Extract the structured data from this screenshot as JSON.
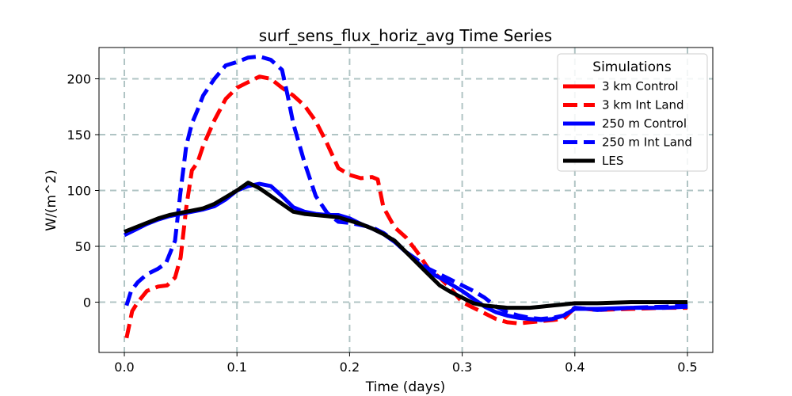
{
  "chart_data": {
    "type": "line",
    "title": "surf_sens_flux_horiz_avg Time Series",
    "xlabel": "Time (days)",
    "ylabel": "W/(m^2)",
    "xlim": [
      -0.0225,
      0.5225
    ],
    "ylim": [
      -45,
      228
    ],
    "xticks": [
      0.0,
      0.1,
      0.2,
      0.3,
      0.4,
      0.5
    ],
    "xtick_labels": [
      "0.0",
      "0.1",
      "0.2",
      "0.3",
      "0.4",
      "0.5"
    ],
    "yticks": [
      0,
      50,
      100,
      150,
      200
    ],
    "ytick_labels": [
      "0",
      "50",
      "100",
      "150",
      "200"
    ],
    "grid": true,
    "legend": {
      "title": "Simulations",
      "placement": "top-right"
    },
    "series": [
      {
        "name": "3 km Control",
        "color": "#ff0000",
        "dash": "solid",
        "x": [],
        "y": []
      },
      {
        "name": "3 km Int Land",
        "color": "#ff0000",
        "dash": "dashed",
        "x": [
          0.002,
          0.007,
          0.012,
          0.02,
          0.03,
          0.038,
          0.045,
          0.05,
          0.055,
          0.06,
          0.065,
          0.07,
          0.08,
          0.09,
          0.1,
          0.11,
          0.12,
          0.13,
          0.14,
          0.15,
          0.16,
          0.17,
          0.18,
          0.19,
          0.2,
          0.21,
          0.22,
          0.225,
          0.23,
          0.24,
          0.25,
          0.26,
          0.27,
          0.28,
          0.29,
          0.3,
          0.31,
          0.32,
          0.33,
          0.34,
          0.35,
          0.36,
          0.37,
          0.38,
          0.39,
          0.4,
          0.42,
          0.45,
          0.48,
          0.5
        ],
        "y": [
          -32,
          -8,
          0,
          10,
          14,
          15,
          22,
          40,
          85,
          118,
          125,
          140,
          163,
          182,
          192,
          197,
          202,
          200,
          192,
          185,
          176,
          162,
          142,
          120,
          114,
          111,
          112,
          110,
          85,
          67,
          58,
          45,
          30,
          22,
          12,
          0,
          -5,
          -10,
          -15,
          -18,
          -19,
          -18,
          -17,
          -16,
          -15,
          -5,
          -7,
          -6,
          -5,
          -5
        ]
      },
      {
        "name": "250 m Control",
        "color": "#0000ff",
        "dash": "solid",
        "x": [
          0.0,
          0.01,
          0.02,
          0.03,
          0.04,
          0.05,
          0.06,
          0.07,
          0.08,
          0.09,
          0.1,
          0.11,
          0.12,
          0.13,
          0.14,
          0.15,
          0.16,
          0.17,
          0.18,
          0.19,
          0.2,
          0.21,
          0.22,
          0.23,
          0.24,
          0.25,
          0.26,
          0.27,
          0.28,
          0.29,
          0.3,
          0.31,
          0.32,
          0.33,
          0.34,
          0.35,
          0.36,
          0.37,
          0.38,
          0.39,
          0.4,
          0.42,
          0.45,
          0.48,
          0.5
        ],
        "y": [
          60,
          65,
          70,
          74,
          77,
          79,
          81,
          83,
          86,
          92,
          100,
          104,
          106,
          104,
          95,
          85,
          81,
          79,
          78,
          78,
          75,
          70,
          66,
          61,
          54,
          45,
          36,
          27,
          22,
          16,
          10,
          3,
          -4,
          -9,
          -12,
          -14,
          -15,
          -16,
          -15,
          -12,
          -6,
          -6,
          -5,
          -5,
          -4
        ]
      },
      {
        "name": "250 m Int Land",
        "color": "#0000ff",
        "dash": "dashed",
        "x": [
          0.002,
          0.006,
          0.012,
          0.02,
          0.03,
          0.037,
          0.045,
          0.05,
          0.055,
          0.06,
          0.065,
          0.07,
          0.08,
          0.09,
          0.1,
          0.11,
          0.12,
          0.13,
          0.14,
          0.145,
          0.15,
          0.16,
          0.17,
          0.18,
          0.19,
          0.2,
          0.21,
          0.22,
          0.23,
          0.24,
          0.25,
          0.26,
          0.27,
          0.28,
          0.29,
          0.3,
          0.31,
          0.32,
          0.33,
          0.34,
          0.35,
          0.36,
          0.37,
          0.38,
          0.39,
          0.4,
          0.42,
          0.45,
          0.48,
          0.5
        ],
        "y": [
          -3,
          10,
          18,
          25,
          30,
          35,
          55,
          100,
          140,
          160,
          172,
          185,
          200,
          212,
          215,
          219,
          220,
          217,
          208,
          185,
          160,
          125,
          95,
          80,
          72,
          71,
          69,
          67,
          62,
          55,
          45,
          38,
          30,
          25,
          20,
          15,
          10,
          4,
          -4,
          -9,
          -12,
          -14,
          -15,
          -14,
          -12,
          -5,
          -7,
          -5,
          -4,
          -3
        ]
      },
      {
        "name": "LES",
        "color": "#000000",
        "dash": "solid",
        "x": [
          0.0,
          0.01,
          0.02,
          0.03,
          0.04,
          0.05,
          0.06,
          0.07,
          0.08,
          0.09,
          0.1,
          0.11,
          0.12,
          0.13,
          0.14,
          0.15,
          0.16,
          0.17,
          0.18,
          0.19,
          0.2,
          0.21,
          0.22,
          0.23,
          0.24,
          0.25,
          0.26,
          0.27,
          0.28,
          0.29,
          0.3,
          0.31,
          0.32,
          0.33,
          0.34,
          0.35,
          0.36,
          0.37,
          0.38,
          0.39,
          0.4,
          0.42,
          0.45,
          0.48,
          0.5
        ],
        "y": [
          63,
          67,
          71,
          75,
          78,
          80,
          82,
          84,
          88,
          94,
          100,
          107,
          102,
          95,
          88,
          81,
          79,
          78,
          77,
          76,
          73,
          70,
          66,
          61,
          55,
          45,
          35,
          25,
          15,
          9,
          4,
          -1,
          -3,
          -4,
          -5,
          -5,
          -5,
          -4,
          -3,
          -2,
          -1,
          -1,
          0,
          0,
          0
        ]
      }
    ]
  }
}
